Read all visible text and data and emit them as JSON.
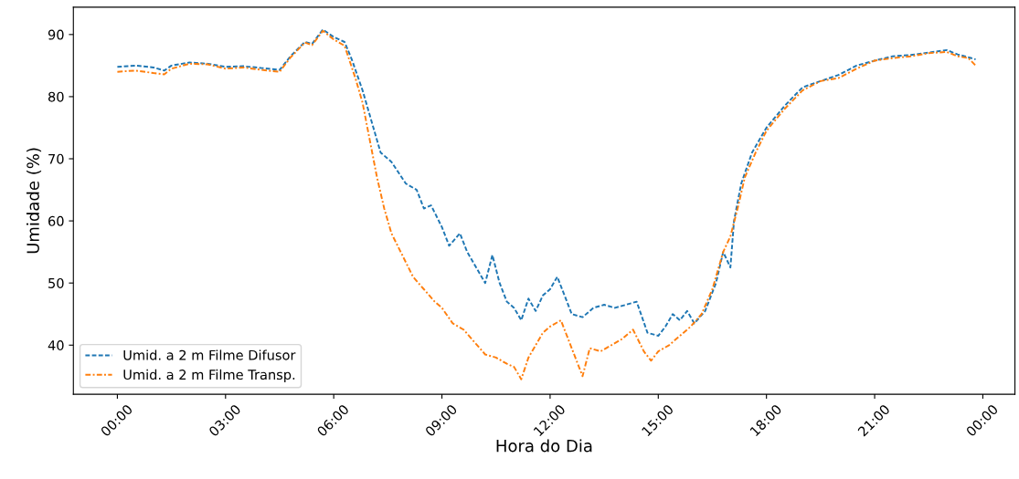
{
  "chart_data": {
    "type": "line",
    "xlabel": "Hora do Dia",
    "ylabel": "Umidade (%)",
    "xlim": [
      -1.22,
      24.89
    ],
    "ylim": [
      32.1,
      94.4
    ],
    "xticks": [
      {
        "value": 0,
        "label": "00:00"
      },
      {
        "value": 3,
        "label": "03:00"
      },
      {
        "value": 6,
        "label": "06:00"
      },
      {
        "value": 9,
        "label": "09:00"
      },
      {
        "value": 12,
        "label": "12:00"
      },
      {
        "value": 15,
        "label": "15:00"
      },
      {
        "value": 18,
        "label": "18:00"
      },
      {
        "value": 21,
        "label": "21:00"
      },
      {
        "value": 24,
        "label": "00:00"
      }
    ],
    "yticks": [
      40,
      50,
      60,
      70,
      80,
      90
    ],
    "legend": "bottom left",
    "grid": false,
    "series": [
      {
        "name": "Umid. a 2 m Filme Difusor",
        "color": "#1f77b4",
        "line_style": "dashed",
        "x": [
          0.0,
          0.5,
          1.0,
          1.3,
          1.5,
          2.0,
          2.5,
          3.0,
          3.5,
          4.0,
          4.5,
          4.8,
          5.2,
          5.4,
          5.7,
          6.0,
          6.3,
          6.5,
          6.8,
          7.0,
          7.3,
          7.6,
          8.0,
          8.3,
          8.5,
          8.7,
          9.0,
          9.2,
          9.5,
          9.7,
          10.0,
          10.2,
          10.4,
          10.6,
          10.8,
          11.0,
          11.2,
          11.4,
          11.6,
          11.8,
          12.0,
          12.2,
          12.4,
          12.6,
          12.9,
          13.2,
          13.5,
          13.8,
          14.1,
          14.4,
          14.7,
          15.0,
          15.2,
          15.4,
          15.6,
          15.8,
          16.0,
          16.3,
          16.6,
          16.8,
          17.0,
          17.1,
          17.3,
          17.6,
          18.0,
          18.5,
          19.0,
          19.5,
          20.0,
          20.5,
          21.0,
          21.5,
          22.0,
          22.5,
          23.0,
          23.3,
          23.5,
          23.8
        ],
        "values": [
          84.8,
          85.0,
          84.7,
          84.2,
          85.0,
          85.5,
          85.3,
          84.8,
          84.9,
          84.6,
          84.3,
          86.5,
          88.8,
          88.5,
          90.8,
          89.6,
          88.8,
          86,
          81,
          77,
          71,
          69.5,
          66,
          65,
          62,
          62.5,
          59,
          56,
          58,
          55,
          52,
          50,
          54.5,
          50,
          47,
          46,
          44,
          47.5,
          45.5,
          48,
          49,
          51,
          48,
          45,
          44.5,
          46,
          46.5,
          46,
          46.5,
          47,
          42,
          41.5,
          43,
          45,
          44,
          45.5,
          43.5,
          45.5,
          50,
          55,
          52.5,
          60,
          66,
          71,
          75,
          78.5,
          81.5,
          82.5,
          83.5,
          85,
          85.8,
          86.5,
          86.7,
          87.1,
          87.5,
          86.8,
          86.5,
          86.0
        ]
      },
      {
        "name": "Umid. a 2 m Filme Transp.",
        "color": "#ff7f0e",
        "line_style": "dashdot",
        "x": [
          0.0,
          0.5,
          1.0,
          1.3,
          1.5,
          2.0,
          2.5,
          3.0,
          3.5,
          4.0,
          4.5,
          4.8,
          5.2,
          5.4,
          5.7,
          6.0,
          6.3,
          6.6,
          6.8,
          7.0,
          7.2,
          7.4,
          7.6,
          7.9,
          8.2,
          8.5,
          8.8,
          9.0,
          9.3,
          9.6,
          9.9,
          10.2,
          10.5,
          10.8,
          11.0,
          11.2,
          11.4,
          11.6,
          11.8,
          12.0,
          12.3,
          12.5,
          12.7,
          12.9,
          13.1,
          13.4,
          13.7,
          14.0,
          14.3,
          14.6,
          14.8,
          15.0,
          15.3,
          15.6,
          15.9,
          16.2,
          16.5,
          16.8,
          17.0,
          17.2,
          17.4,
          17.7,
          18.0,
          18.5,
          19.0,
          19.5,
          20.0,
          20.5,
          21.0,
          21.5,
          22.0,
          22.5,
          23.0,
          23.3,
          23.6,
          23.8
        ],
        "values": [
          84.0,
          84.2,
          83.8,
          83.6,
          84.5,
          85.3,
          85.2,
          84.5,
          84.7,
          84.3,
          84.0,
          86.3,
          88.7,
          88.3,
          90.6,
          89.2,
          88.2,
          83,
          79,
          73,
          67,
          62,
          58,
          54.5,
          51,
          49,
          47,
          46,
          43.5,
          42.5,
          40.5,
          38.5,
          38,
          37,
          36.5,
          34.5,
          38,
          40,
          42,
          43,
          44,
          41,
          38,
          35,
          39.5,
          39,
          40,
          41,
          42.5,
          39,
          37.5,
          39,
          40,
          41.5,
          43,
          45,
          49,
          55,
          57.5,
          62,
          67,
          71,
          74.5,
          78,
          81,
          82.5,
          83,
          84.5,
          85.8,
          86.2,
          86.5,
          87.0,
          87.2,
          86.5,
          86.2,
          85.0
        ]
      }
    ]
  }
}
